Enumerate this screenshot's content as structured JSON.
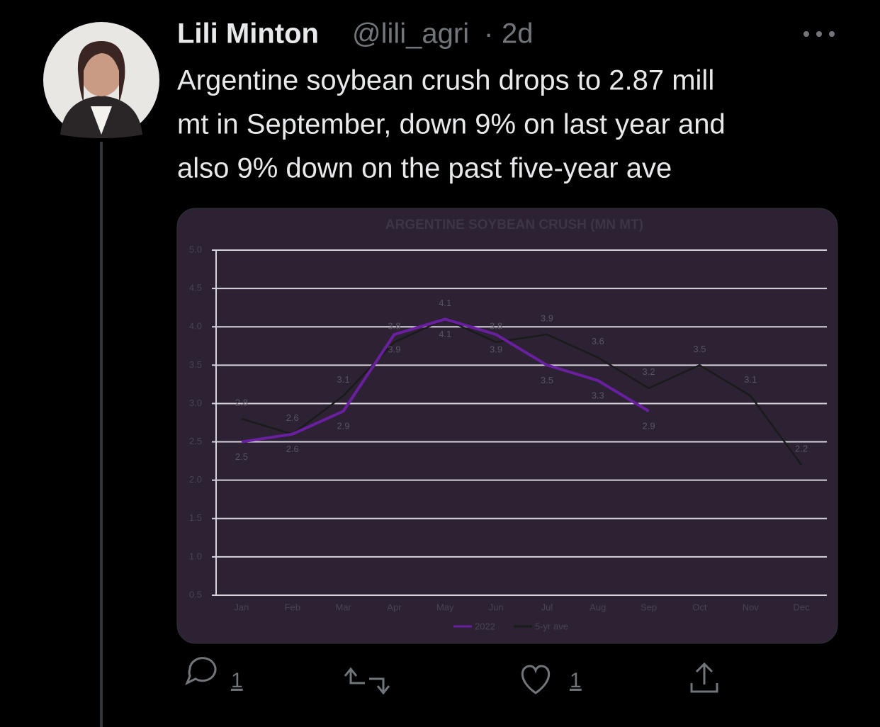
{
  "tweet": {
    "author": "Lili Minton",
    "handle": "@lili_agri",
    "separator": "·",
    "time": "2d",
    "text_lines": [
      "Argentine soybean crush drops to 2.87 mill",
      "mt in September, down 9% on last year and",
      "also 9% down on the past five-year ave"
    ],
    "replies": "1",
    "likes": "1"
  },
  "chart_data": {
    "type": "line",
    "title": "ARGENTINE SOYBEAN CRUSH (MN MT)",
    "categories": [
      "Jan",
      "Feb",
      "Mar",
      "Apr",
      "May",
      "Jun",
      "Jul",
      "Aug",
      "Sep",
      "Oct",
      "Nov",
      "Dec"
    ],
    "series": [
      {
        "name": "2022",
        "color": "#6a1fa0",
        "values": [
          2.5,
          2.6,
          2.9,
          3.9,
          4.1,
          3.9,
          3.5,
          3.3,
          2.9,
          null,
          null,
          null
        ]
      },
      {
        "name": "5-yr ave",
        "color": "#1a1a1a",
        "values": [
          2.8,
          2.6,
          3.1,
          3.8,
          4.1,
          3.8,
          3.9,
          3.6,
          3.2,
          3.5,
          3.1,
          2.2
        ]
      }
    ],
    "ylim": [
      0.5,
      5
    ],
    "yticks": [
      {
        "value": 0.5,
        "label": "0.5"
      },
      {
        "value": 1,
        "label": "1.0"
      },
      {
        "value": 1.5,
        "label": "1.5"
      },
      {
        "value": 2,
        "label": "2.0"
      },
      {
        "value": 2.5,
        "label": "2.5"
      },
      {
        "value": 3,
        "label": "3.0"
      },
      {
        "value": 3.5,
        "label": "3.5"
      },
      {
        "value": 4,
        "label": "4.0"
      },
      {
        "value": 4.5,
        "label": "4.5"
      },
      {
        "value": 5,
        "label": "5.0"
      }
    ],
    "grid": true,
    "legend": "bottom"
  }
}
